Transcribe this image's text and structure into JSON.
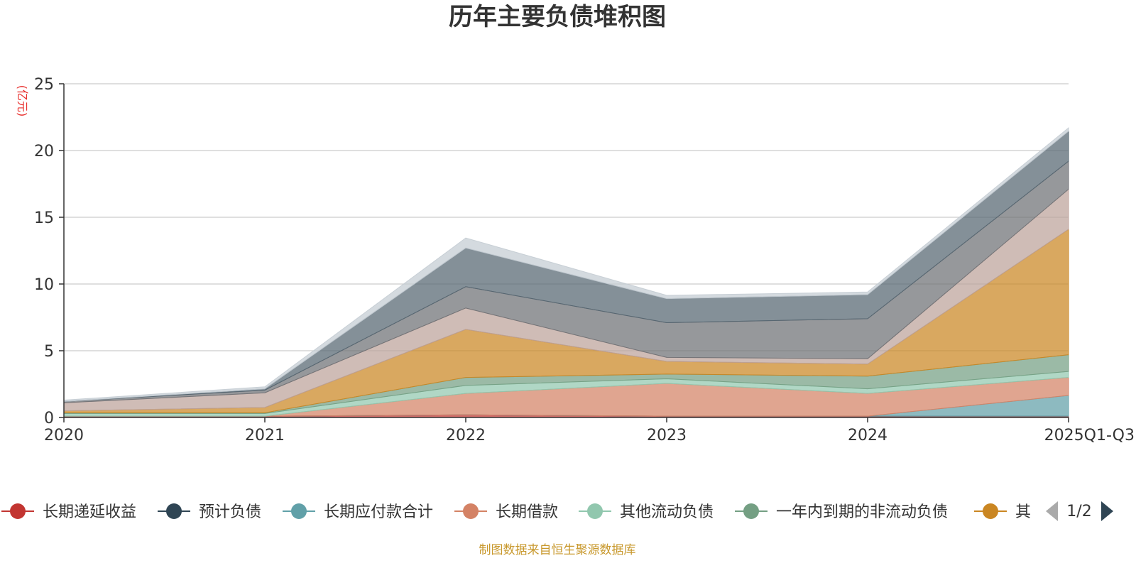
{
  "chart_data": {
    "type": "area",
    "stacked": true,
    "title": "历年主要负债堆积图",
    "unit_label": "(亿元)",
    "x": [
      "2020",
      "2021",
      "2022",
      "2023",
      "2024",
      "2025Q1-Q3"
    ],
    "ylim": [
      0,
      25
    ],
    "yticks": [
      0,
      5,
      10,
      15,
      20,
      25
    ],
    "grid": true,
    "legend_position": "bottom",
    "legend_page": "1/2",
    "series": [
      {
        "name": "长期递延收益",
        "color": "#c23531",
        "values": [
          0.1,
          0.1,
          0.2,
          0.1,
          0.1,
          0.1
        ]
      },
      {
        "name": "预计负债",
        "color": "#2f4554",
        "values": [
          0.0,
          0.0,
          0.0,
          0.0,
          0.0,
          0.0
        ]
      },
      {
        "name": "长期应付款合计",
        "color": "#61a0a8",
        "values": [
          0.0,
          0.0,
          0.0,
          0.0,
          0.0,
          1.55
        ]
      },
      {
        "name": "长期借款",
        "color": "#d48265",
        "values": [
          0.0,
          0.0,
          1.6,
          2.45,
          1.7,
          1.35
        ]
      },
      {
        "name": "其他流动负债",
        "color": "#91c7ae",
        "values": [
          0.2,
          0.2,
          0.6,
          0.35,
          0.35,
          0.45
        ]
      },
      {
        "name": "一年内到期的非流动负债",
        "color": "#749f83",
        "values": [
          0.05,
          0.05,
          0.6,
          0.35,
          0.95,
          1.25
        ]
      },
      {
        "name": "其",
        "color": "#ca8622",
        "values": [
          0.15,
          0.4,
          3.6,
          0.95,
          0.9,
          9.4
        ]
      },
      {
        "name": "",
        "color": "#bda29a",
        "values": [
          0.6,
          1.1,
          1.6,
          0.3,
          0.4,
          3.0
        ]
      },
      {
        "name": "",
        "color": "#6e7074",
        "values": [
          0.1,
          0.2,
          1.6,
          2.6,
          3.0,
          2.1
        ]
      },
      {
        "name": "",
        "color": "#546570",
        "values": [
          0.0,
          0.1,
          2.9,
          1.8,
          1.8,
          2.25
        ]
      },
      {
        "name": "",
        "color": "#c4ccd3",
        "values": [
          0.1,
          0.15,
          0.75,
          0.25,
          0.2,
          0.25
        ]
      }
    ],
    "legend_visible": [
      "长期递延收益",
      "预计负债",
      "长期应付款合计",
      "长期借款",
      "其他流动负债",
      "一年内到期的非流动负债",
      "其"
    ]
  },
  "source_note": "制图数据来自恒生聚源数据库"
}
